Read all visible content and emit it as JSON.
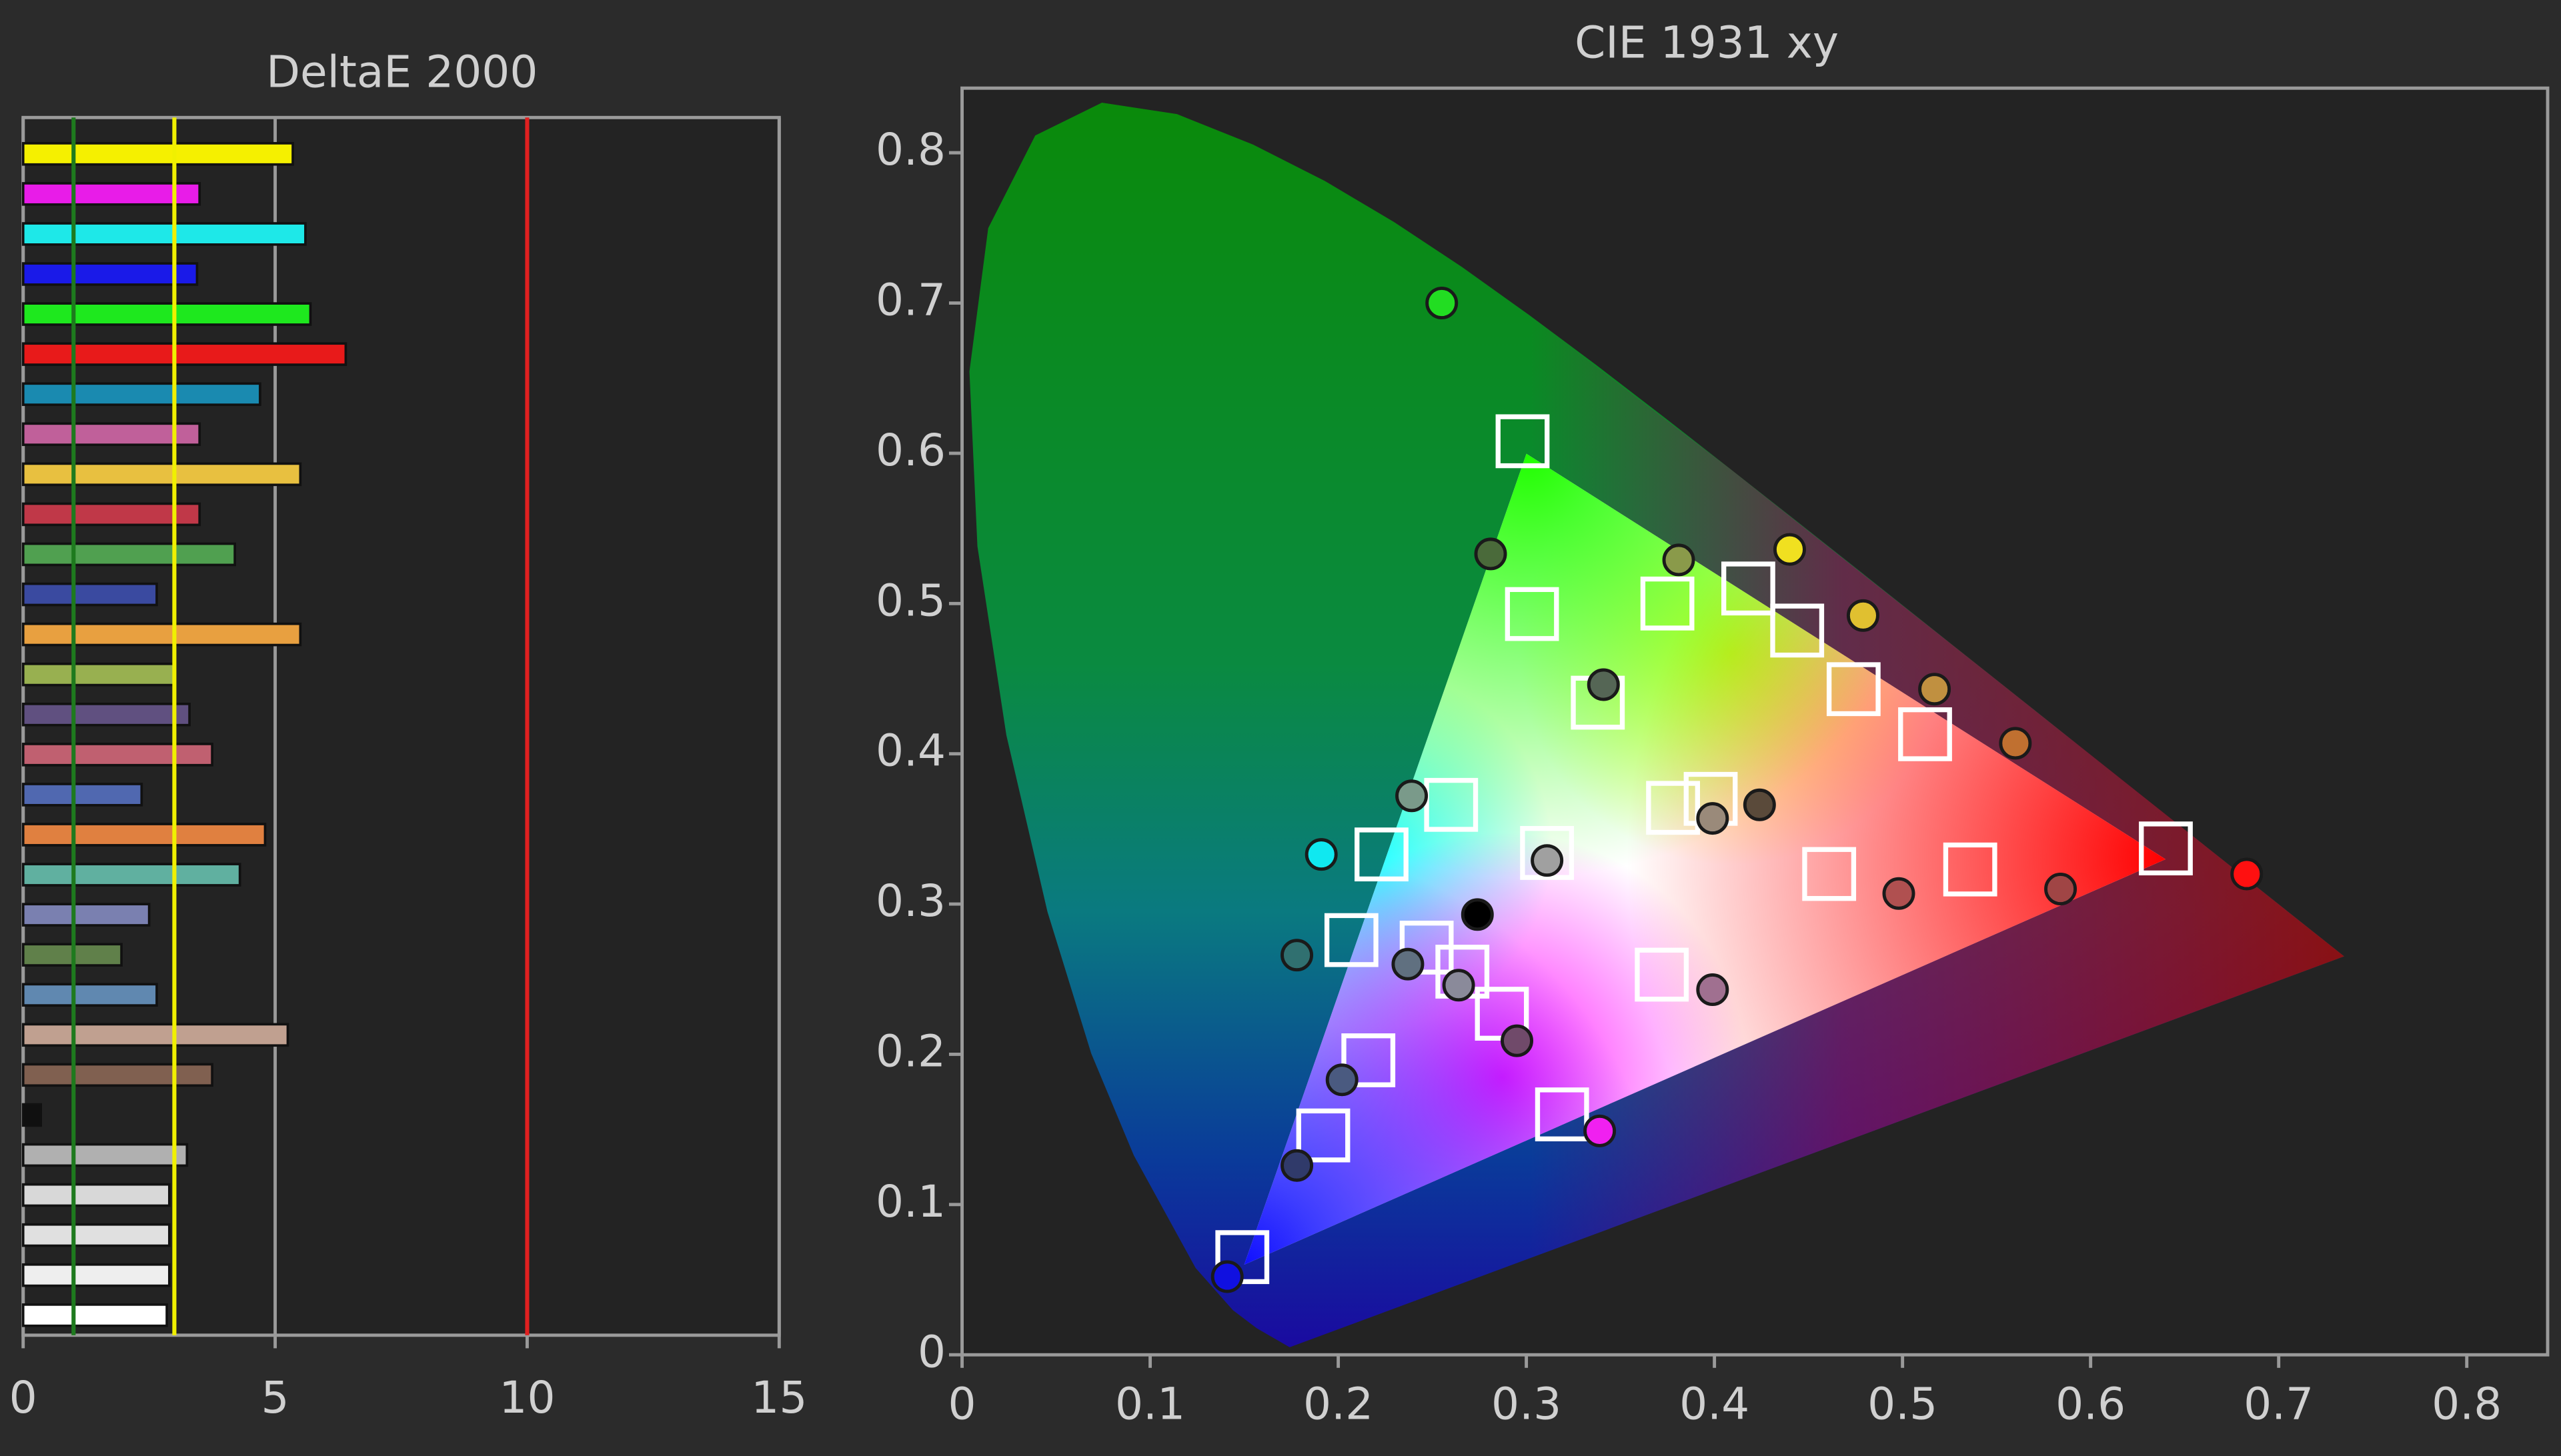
{
  "chart_data": [
    {
      "type": "bar",
      "orientation": "horizontal",
      "title": "DeltaE 2000",
      "values": [
        5.35,
        3.5,
        5.6,
        3.45,
        5.7,
        6.4,
        4.7,
        3.5,
        5.5,
        3.5,
        4.2,
        2.65,
        5.5,
        3.0,
        3.3,
        3.75,
        2.35,
        4.8,
        4.3,
        2.5,
        1.95,
        2.65,
        5.25,
        3.75,
        0.35,
        3.25,
        2.9,
        2.9,
        2.9,
        2.85
      ],
      "colors": [
        "#f5f000",
        "#e81ce8",
        "#1ee8e8",
        "#1a1ae8",
        "#1ee81e",
        "#e81a1a",
        "#1a8ab0",
        "#c0609a",
        "#e8c040",
        "#c03848",
        "#50a050",
        "#3a4aa0",
        "#e8a040",
        "#98b050",
        "#605080",
        "#c06070",
        "#5068b0",
        "#e08040",
        "#60b0a0",
        "#7a80b0",
        "#60804a",
        "#6088b0",
        "#c0a090",
        "#806050",
        "#101010",
        "#b0b0b0",
        "#d8d8d8",
        "#e0e0e0",
        "#eeeeee",
        "#ffffff"
      ],
      "xlim": [
        0,
        15
      ],
      "xticks": [
        0,
        5,
        10,
        15
      ],
      "grid": true,
      "reference_lines": [
        {
          "value": 1,
          "color": "#1e7a1e"
        },
        {
          "value": 3,
          "color": "#f0f000"
        },
        {
          "value": 10,
          "color": "#e02020"
        }
      ]
    },
    {
      "type": "scatter",
      "title": "CIE 1931 xy",
      "xlim": [
        0,
        0.843
      ],
      "ylim": [
        0,
        0.843
      ],
      "xticks": [
        0,
        0.1,
        0.2,
        0.3,
        0.4,
        0.5,
        0.6,
        0.7,
        0.8
      ],
      "yticks": [
        0,
        0.1,
        0.2,
        0.3,
        0.4,
        0.5,
        0.6,
        0.7,
        0.8
      ],
      "series": [
        {
          "marker": "square",
          "color": "#ffffff",
          "x": [
            0.298,
            0.303,
            0.375,
            0.418,
            0.444,
            0.474,
            0.512,
            0.338,
            0.26,
            0.223,
            0.311,
            0.398,
            0.378,
            0.461,
            0.536,
            0.64,
            0.207,
            0.247,
            0.266,
            0.287,
            0.372,
            0.216,
            0.192,
            0.319,
            0.149
          ],
          "y": [
            0.608,
            0.493,
            0.5,
            0.51,
            0.482,
            0.443,
            0.413,
            0.434,
            0.366,
            0.333,
            0.334,
            0.37,
            0.364,
            0.32,
            0.323,
            0.337,
            0.276,
            0.271,
            0.255,
            0.227,
            0.253,
            0.196,
            0.146,
            0.16,
            0.065
          ]
        },
        {
          "marker": "circle",
          "x": [
            0.255,
            0.281,
            0.381,
            0.44,
            0.479,
            0.341,
            0.517,
            0.56,
            0.239,
            0.424,
            0.399,
            0.191,
            0.311,
            0.274,
            0.498,
            0.584,
            0.683,
            0.178,
            0.237,
            0.264,
            0.399,
            0.295,
            0.202,
            0.339,
            0.178,
            0.141
          ],
          "y": [
            0.7,
            0.533,
            0.529,
            0.536,
            0.492,
            0.446,
            0.443,
            0.407,
            0.372,
            0.366,
            0.357,
            0.333,
            0.329,
            0.293,
            0.307,
            0.31,
            0.32,
            0.266,
            0.26,
            0.246,
            0.243,
            0.209,
            0.183,
            0.149,
            0.126,
            0.052
          ],
          "colors": [
            "#22dd22",
            "#4a6a3a",
            "#8a9a4a",
            "#f0e020",
            "#e0c030",
            "#556655",
            "#c09040",
            "#c07030",
            "#7a9a8a",
            "#5a4a3a",
            "#9a8a7a",
            "#10e8f0",
            "#a0a0a0",
            "#000000",
            "#b05050",
            "#a04545",
            "#ff1010",
            "#307070",
            "#607080",
            "#8a8a9a",
            "#a07090",
            "#704a6a",
            "#4a5a80",
            "#f020f0",
            "#303a6a",
            "#1010e0"
          ]
        }
      ]
    }
  ]
}
